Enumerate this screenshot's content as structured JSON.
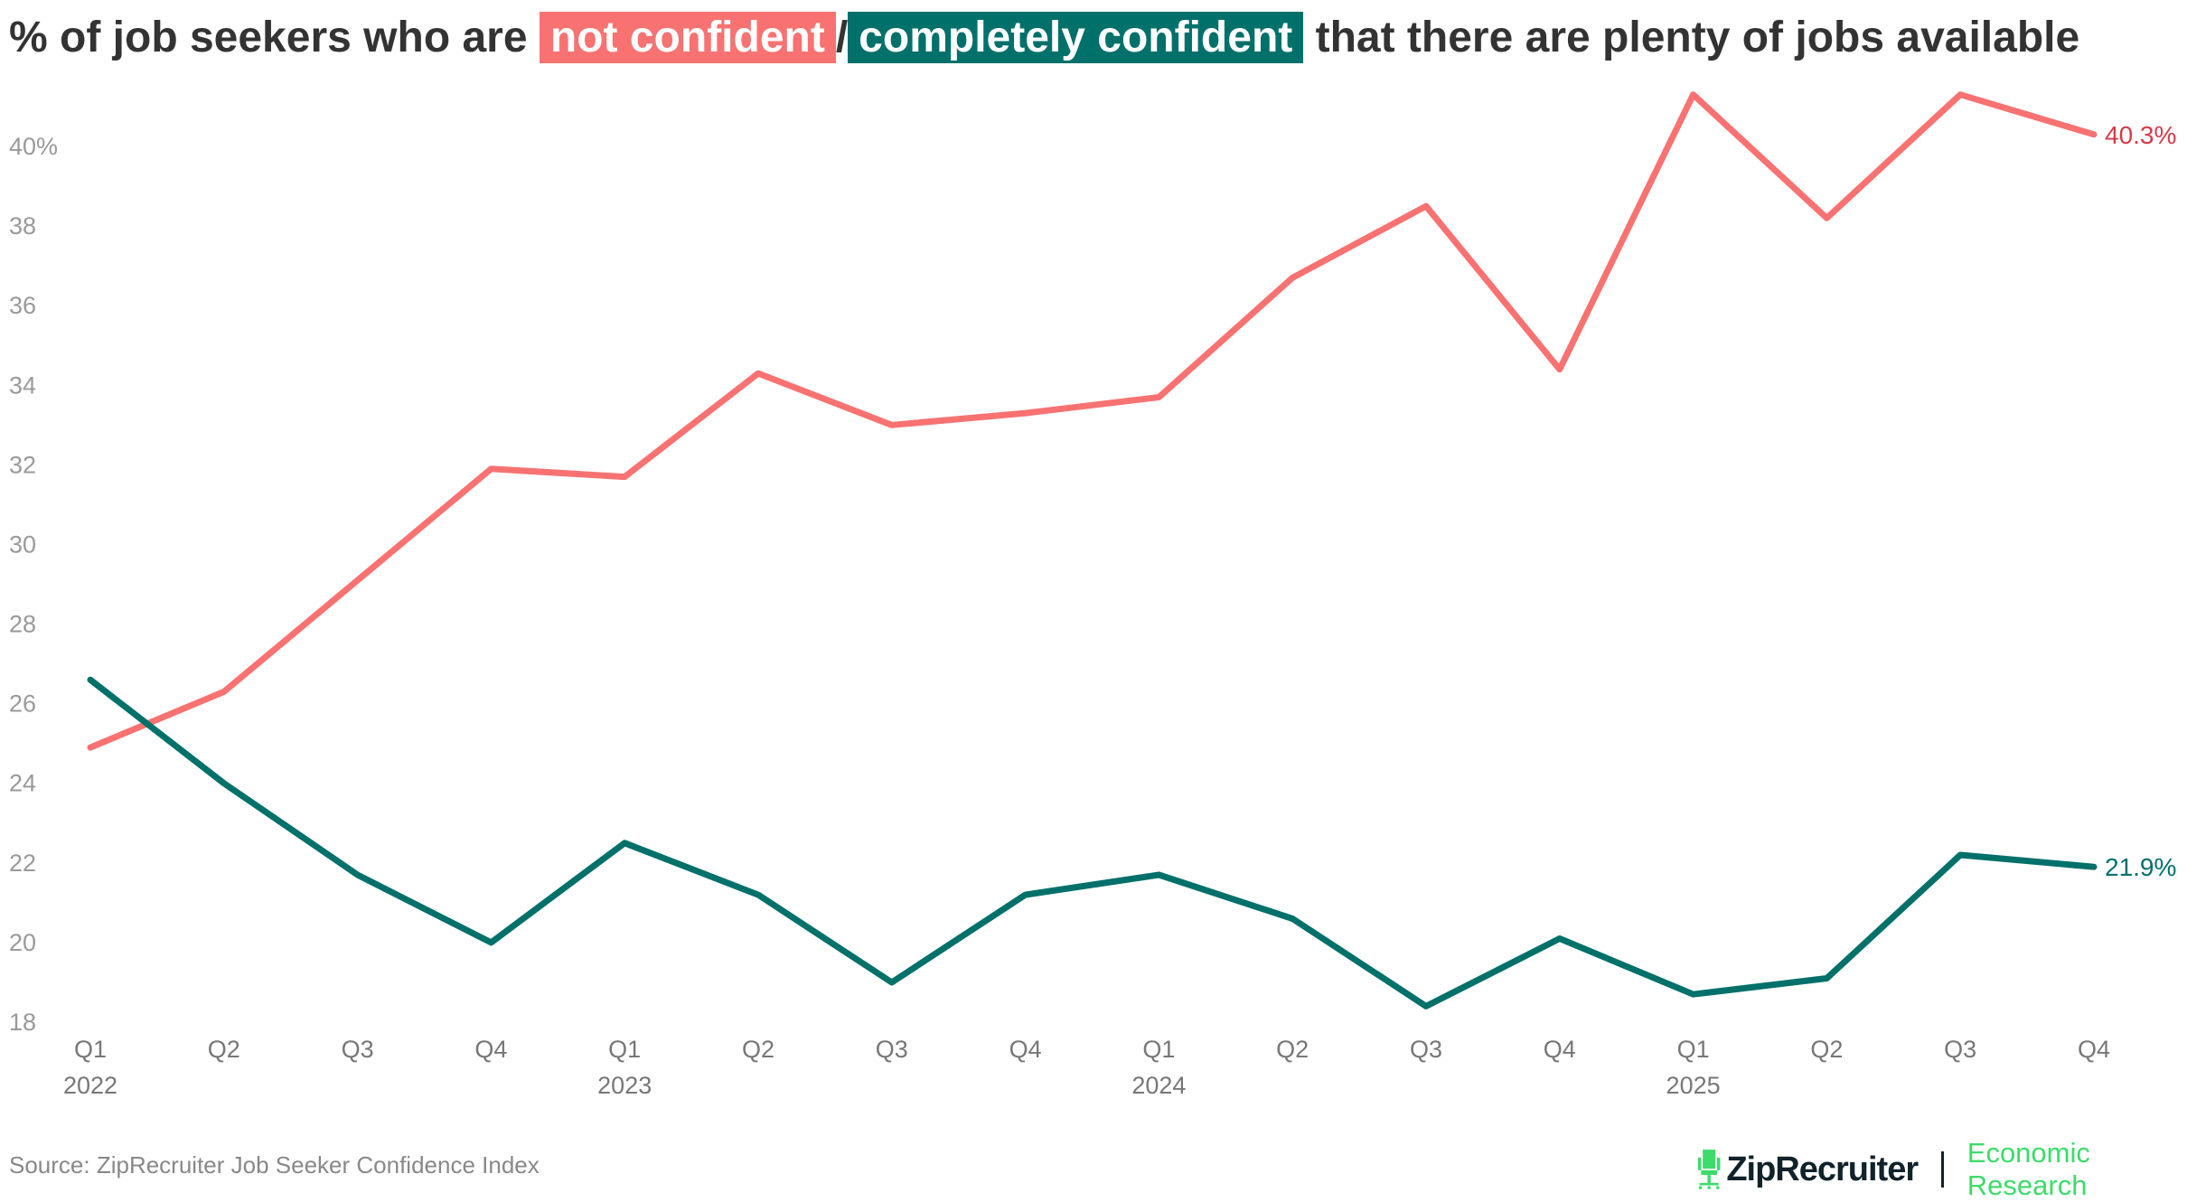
{
  "title": {
    "prefix": "% of job seekers who are",
    "not_confident": "not confident",
    "slash": "/",
    "completely_confident": "completely confident",
    "suffix": "that there are plenty of jobs available"
  },
  "colors": {
    "not_confident": "#f87272",
    "completely_confident": "#00706a",
    "not_confident_label": "#d63a48"
  },
  "chart_data": {
    "type": "line",
    "x": [
      "Q1 2022",
      "Q2 2022",
      "Q3 2022",
      "Q4 2022",
      "Q1 2023",
      "Q2 2023",
      "Q3 2023",
      "Q4 2023",
      "Q1 2024",
      "Q2 2024",
      "Q3 2024",
      "Q4 2024",
      "Q1 2025",
      "Q2 2025",
      "Q3 2025",
      "Q4 2025"
    ],
    "x_tick_labels": [
      "Q1",
      "Q2",
      "Q3",
      "Q4",
      "Q1",
      "Q2",
      "Q3",
      "Q4",
      "Q1",
      "Q2",
      "Q3",
      "Q4",
      "Q1",
      "Q2",
      "Q3",
      "Q4"
    ],
    "year_labels": [
      {
        "index": 0,
        "label": "2022"
      },
      {
        "index": 4,
        "label": "2023"
      },
      {
        "index": 8,
        "label": "2024"
      },
      {
        "index": 12,
        "label": "2025"
      }
    ],
    "y_ticks": [
      "18",
      "20",
      "22",
      "24",
      "26",
      "28",
      "30",
      "32",
      "34",
      "36",
      "38",
      "40%"
    ],
    "ylim": [
      18,
      40
    ],
    "grid": false,
    "series": [
      {
        "key": "not_confident",
        "values": [
          24.9,
          26.3,
          29.1,
          31.9,
          31.7,
          34.3,
          33.0,
          33.3,
          33.7,
          36.7,
          38.5,
          34.4,
          41.3,
          38.2,
          41.3,
          40.3
        ],
        "end_label": "40.3%"
      },
      {
        "key": "completely_confident",
        "values": [
          26.6,
          24.0,
          21.7,
          20.0,
          22.5,
          21.2,
          19.0,
          21.2,
          21.7,
          20.6,
          18.4,
          20.1,
          18.7,
          19.1,
          22.2,
          21.9
        ],
        "end_label": "21.9%"
      }
    ]
  },
  "source": "Source: ZipRecruiter Job Seeker Confidence Index",
  "logo": {
    "brand": "ZipRecruiter",
    "registered": "®",
    "unit": "Economic Research",
    "icon": "chair-icon"
  }
}
